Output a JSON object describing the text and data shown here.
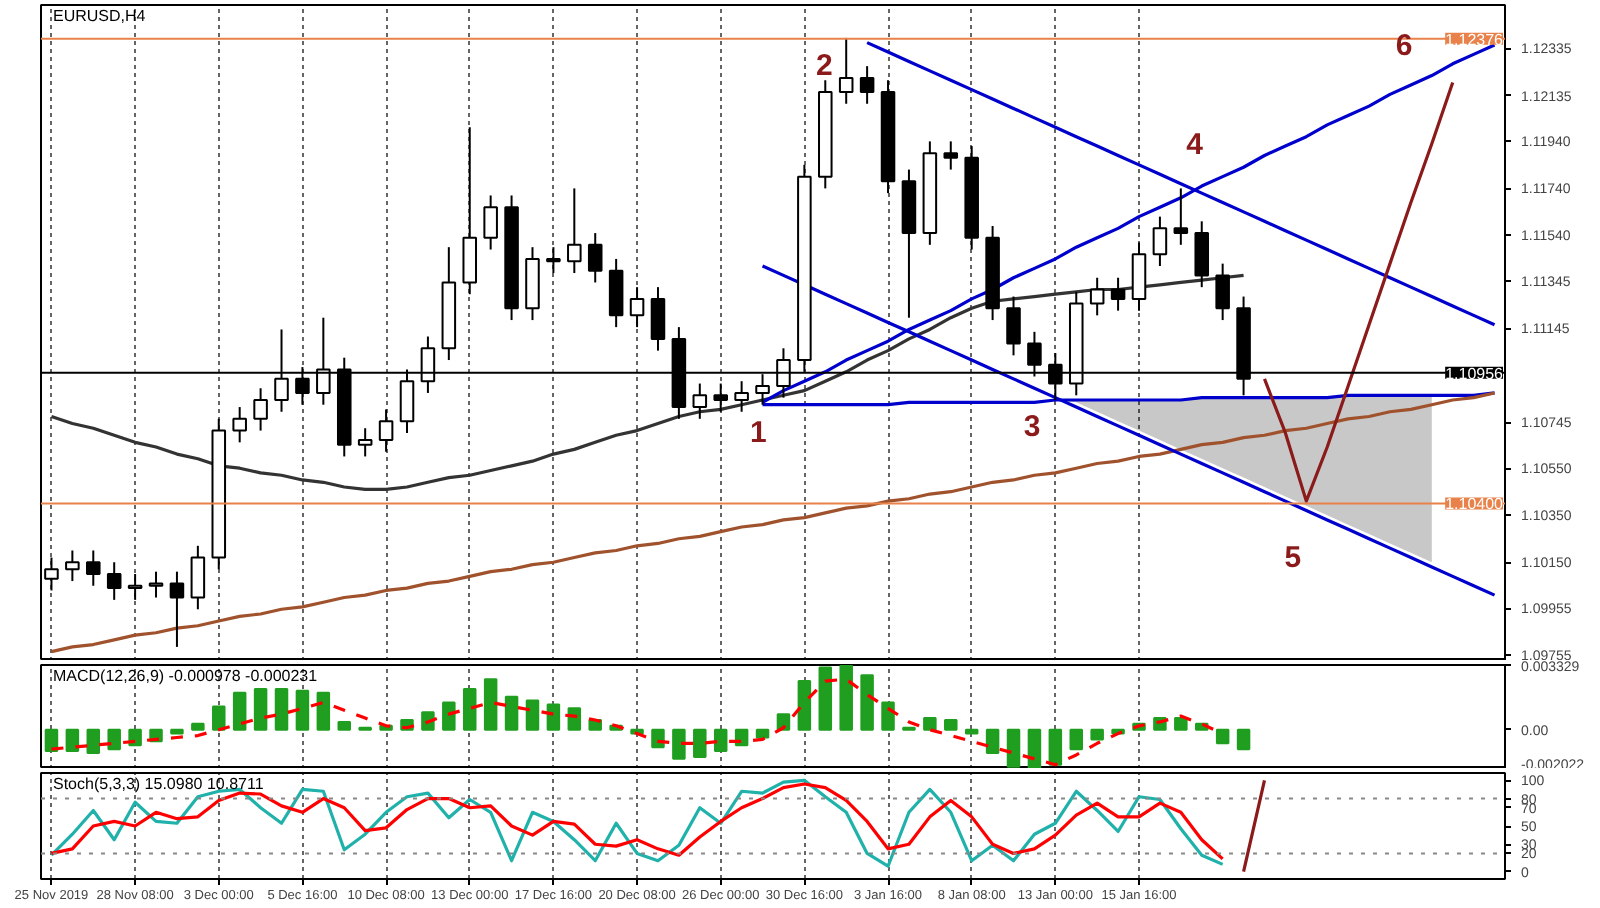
{
  "chart_data": [
    {
      "type": "candlestick",
      "title": "EURUSD,H4",
      "ylim": [
        1.0973,
        1.1252
      ],
      "tick_labels": "y",
      "grid": "x",
      "yticks": [
        {
          "value": 1.12335,
          "label": "1.12335"
        },
        {
          "value": 1.12135,
          "label": "1.12135"
        },
        {
          "value": 1.1194,
          "label": "1.11940"
        },
        {
          "value": 1.1174,
          "label": "1.11740"
        },
        {
          "value": 1.1154,
          "label": "1.11540"
        },
        {
          "value": 1.11345,
          "label": "1.11345"
        },
        {
          "value": 1.11145,
          "label": "1.11145"
        },
        {
          "value": 1.10745,
          "label": "1.10745"
        },
        {
          "value": 1.1055,
          "label": "1.10550"
        },
        {
          "value": 1.1035,
          "label": "1.10350"
        },
        {
          "value": 1.1015,
          "label": "1.10150"
        },
        {
          "value": 1.09955,
          "label": "1.09955"
        },
        {
          "value": 1.09755,
          "label": "1.09755"
        }
      ],
      "ohlc": [
        [
          1.1008,
          1.1017,
          1.1003,
          1.1012
        ],
        [
          1.1012,
          1.102,
          1.1007,
          1.1015
        ],
        [
          1.1015,
          1.102,
          1.1005,
          1.101
        ],
        [
          1.101,
          1.1015,
          1.0999,
          1.1004
        ],
        [
          1.1004,
          1.101,
          1.0999,
          1.1005
        ],
        [
          1.1005,
          1.1011,
          1.1,
          1.1006
        ],
        [
          1.1006,
          1.1011,
          1.0979,
          1.1
        ],
        [
          1.1,
          1.1022,
          1.0995,
          1.1017
        ],
        [
          1.1017,
          1.1076,
          1.1012,
          1.1071
        ],
        [
          1.1071,
          1.1081,
          1.1066,
          1.1076
        ],
        [
          1.1076,
          1.1089,
          1.1071,
          1.1084
        ],
        [
          1.1084,
          1.1114,
          1.1079,
          1.1093
        ],
        [
          1.1093,
          1.1098,
          1.1082,
          1.1087
        ],
        [
          1.1087,
          1.1119,
          1.1082,
          1.1097
        ],
        [
          1.1097,
          1.1102,
          1.106,
          1.1065
        ],
        [
          1.1065,
          1.1072,
          1.106,
          1.1067
        ],
        [
          1.1067,
          1.108,
          1.1062,
          1.1075
        ],
        [
          1.1075,
          1.1097,
          1.107,
          1.1092
        ],
        [
          1.1092,
          1.1111,
          1.1087,
          1.1106
        ],
        [
          1.1106,
          1.1149,
          1.1101,
          1.1134
        ],
        [
          1.1134,
          1.12,
          1.1129,
          1.1153
        ],
        [
          1.1153,
          1.1171,
          1.1148,
          1.1166
        ],
        [
          1.1166,
          1.1171,
          1.1118,
          1.1123
        ],
        [
          1.1123,
          1.1149,
          1.1118,
          1.1144
        ],
        [
          1.1144,
          1.1149,
          1.1138,
          1.1143
        ],
        [
          1.1143,
          1.1174,
          1.1138,
          1.115
        ],
        [
          1.115,
          1.1155,
          1.1134,
          1.1139
        ],
        [
          1.1139,
          1.1144,
          1.1115,
          1.112
        ],
        [
          1.112,
          1.1132,
          1.1115,
          1.1127
        ],
        [
          1.1127,
          1.1132,
          1.1105,
          1.111
        ],
        [
          1.111,
          1.1115,
          1.1076,
          1.1081
        ],
        [
          1.1081,
          1.1091,
          1.1076,
          1.1086
        ],
        [
          1.1086,
          1.1091,
          1.1079,
          1.1084
        ],
        [
          1.1084,
          1.1092,
          1.1079,
          1.1087
        ],
        [
          1.1087,
          1.1095,
          1.1082,
          1.109
        ],
        [
          1.109,
          1.1106,
          1.1085,
          1.1101
        ],
        [
          1.1101,
          1.1184,
          1.1096,
          1.1179
        ],
        [
          1.1179,
          1.122,
          1.1174,
          1.1215
        ],
        [
          1.1215,
          1.1238,
          1.121,
          1.1221
        ],
        [
          1.1221,
          1.1226,
          1.121,
          1.1215
        ],
        [
          1.1215,
          1.122,
          1.1172,
          1.1177
        ],
        [
          1.1177,
          1.1182,
          1.1119,
          1.1155
        ],
        [
          1.1155,
          1.1194,
          1.115,
          1.1189
        ],
        [
          1.1189,
          1.1194,
          1.1182,
          1.1187
        ],
        [
          1.1187,
          1.1192,
          1.1148,
          1.1153
        ],
        [
          1.1153,
          1.1158,
          1.1118,
          1.1123
        ],
        [
          1.1123,
          1.1128,
          1.1103,
          1.1108
        ],
        [
          1.1108,
          1.1113,
          1.1094,
          1.1099
        ],
        [
          1.1099,
          1.1104,
          1.1084,
          1.1091
        ],
        [
          1.1091,
          1.113,
          1.1086,
          1.1125
        ],
        [
          1.1125,
          1.1136,
          1.112,
          1.1131
        ],
        [
          1.1131,
          1.1136,
          1.1122,
          1.1127
        ],
        [
          1.1127,
          1.1151,
          1.1122,
          1.1146
        ],
        [
          1.1146,
          1.1162,
          1.1141,
          1.1157
        ],
        [
          1.1157,
          1.1174,
          1.115,
          1.1155
        ],
        [
          1.1155,
          1.116,
          1.1132,
          1.1137
        ],
        [
          1.1137,
          1.1142,
          1.1118,
          1.1123
        ],
        [
          1.1123,
          1.1128,
          1.1086,
          1.1093
        ],
        null,
        null,
        null,
        null,
        null,
        null,
        null,
        null,
        null,
        null,
        null,
        null
      ],
      "series": [
        {
          "type": "line",
          "color": "#0000cd",
          "values": [
            null,
            null,
            null,
            null,
            null,
            null,
            null,
            null,
            null,
            null,
            null,
            null,
            null,
            null,
            null,
            null,
            null,
            null,
            null,
            null,
            null,
            null,
            null,
            null,
            null,
            null,
            null,
            null,
            null,
            null,
            null,
            null,
            null,
            null,
            1.1082,
            1.1082,
            1.1082,
            1.1082,
            1.1082,
            1.1082,
            1.1082,
            1.1083,
            1.1083,
            1.1083,
            1.1083,
            1.1083,
            1.1083,
            1.1083,
            1.1084,
            1.1084,
            1.1084,
            1.1084,
            1.1084,
            1.1084,
            1.1084,
            1.1085,
            1.1085,
            1.1085,
            1.1085,
            1.1085,
            1.1085,
            1.1085,
            1.1086,
            1.1086,
            1.1086,
            1.1086,
            1.1086,
            1.1086,
            1.1086,
            1.1087
          ],
          "upper": [
            null,
            null,
            null,
            null,
            null,
            null,
            null,
            null,
            null,
            null,
            null,
            null,
            null,
            null,
            null,
            null,
            null,
            null,
            null,
            null,
            null,
            null,
            null,
            null,
            null,
            null,
            null,
            null,
            null,
            null,
            null,
            null,
            null,
            null,
            null,
            null,
            null,
            null,
            null,
            null,
            null,
            null,
            null,
            null,
            null,
            null,
            null,
            null,
            1.1084,
            1.1084,
            1.1084,
            1.1084,
            1.1084,
            1.1084,
            1.1084,
            1.1085,
            1.1085,
            1.1085,
            1.1085,
            1.1085,
            1.1085,
            1.1085,
            1.1086,
            1.1086,
            1.1086,
            1.1086,
            1.1086,
            null,
            null,
            null
          ],
          "lower": [
            null,
            null,
            null,
            null,
            null,
            null,
            null,
            null,
            null,
            null,
            null,
            null,
            null,
            null,
            null,
            null,
            null,
            null,
            null,
            null,
            null,
            null,
            null,
            null,
            null,
            null,
            null,
            null,
            null,
            null,
            null,
            null,
            null,
            null,
            null,
            null,
            null,
            null,
            null,
            null,
            null,
            null,
            null,
            null,
            null,
            null,
            null,
            null,
            1.1084,
            1.1083,
            1.1079,
            1.1075,
            1.1071,
            1.1067,
            1.1063,
            1.1059,
            1.1055,
            1.1051,
            1.1047,
            1.1043,
            1.1039,
            1.1035,
            1.1031,
            1.1027,
            1.1023,
            1.1019,
            1.1015,
            null,
            null,
            null
          ]
        },
        {
          "type": "line",
          "color": "#333333",
          "values": [
            1.1077,
            1.1074,
            1.1072,
            1.1069,
            1.1066,
            1.1064,
            1.1061,
            1.1059,
            1.1056,
            1.1055,
            1.1053,
            1.1052,
            1.105,
            1.1049,
            1.1047,
            1.1046,
            1.1046,
            1.1047,
            1.1049,
            1.1051,
            1.1052,
            1.1054,
            1.1056,
            1.1058,
            1.1061,
            1.1063,
            1.1066,
            1.1069,
            1.1071,
            1.1074,
            1.1077,
            1.1079,
            1.108,
            1.1082,
            1.1084,
            1.1086,
            1.1088,
            1.1092,
            1.1096,
            1.1101,
            1.1105,
            1.111,
            1.1114,
            1.1119,
            1.1123,
            1.1126,
            1.1127,
            1.1128,
            1.1129,
            1.113,
            1.1131,
            1.1131,
            1.1132,
            1.1133,
            1.1134,
            1.1135,
            1.1136,
            1.1137,
            null,
            null,
            null,
            null,
            null,
            null,
            null,
            null,
            null,
            null,
            null,
            null
          ]
        },
        {
          "type": "line",
          "color": "#a0522d",
          "values": [
            1.0977,
            1.0979,
            1.098,
            1.0982,
            1.0984,
            1.0985,
            1.0987,
            1.0988,
            1.099,
            1.0992,
            1.0993,
            1.0995,
            1.0996,
            1.0998,
            1.1,
            1.1001,
            1.1003,
            1.1004,
            1.1006,
            1.1007,
            1.1009,
            1.1011,
            1.1012,
            1.1014,
            1.1015,
            1.1017,
            1.1019,
            1.102,
            1.1022,
            1.1023,
            1.1025,
            1.1026,
            1.1028,
            1.103,
            1.1031,
            1.1033,
            1.1034,
            1.1036,
            1.1038,
            1.1039,
            1.1041,
            1.1042,
            1.1044,
            1.1045,
            1.1047,
            1.1049,
            1.105,
            1.1052,
            1.1053,
            1.1055,
            1.1057,
            1.1058,
            1.106,
            1.1061,
            1.1063,
            1.1065,
            1.1066,
            1.1068,
            1.1069,
            1.1071,
            1.1072,
            1.1074,
            1.1076,
            1.1077,
            1.1079,
            1.108,
            1.1082,
            1.1084,
            1.1085,
            1.1087
          ]
        },
        {
          "type": "line",
          "color": "#0000cd",
          "values": [
            null,
            null,
            null,
            null,
            null,
            null,
            null,
            null,
            null,
            null,
            null,
            null,
            null,
            null,
            null,
            null,
            null,
            null,
            null,
            null,
            null,
            null,
            null,
            null,
            null,
            null,
            null,
            null,
            null,
            null,
            null,
            null,
            null,
            null,
            1.1083,
            1.1088,
            1.1092,
            1.1096,
            1.1101,
            1.1105,
            1.1109,
            1.1114,
            1.1118,
            1.1122,
            1.1127,
            1.1131,
            1.1136,
            1.114,
            1.1144,
            1.1149,
            1.1153,
            1.1157,
            1.1162,
            1.1166,
            1.117,
            1.1175,
            1.1179,
            1.1183,
            1.1188,
            1.1192,
            1.1196,
            1.1201,
            1.1205,
            1.1209,
            1.1214,
            1.1218,
            1.1222,
            1.1227,
            1.1231,
            1.1235
          ]
        },
        {
          "type": "line",
          "color": "#0000cd",
          "values": [
            null,
            null,
            null,
            null,
            null,
            null,
            null,
            null,
            null,
            null,
            null,
            null,
            null,
            null,
            null,
            null,
            null,
            null,
            null,
            null,
            null,
            null,
            null,
            null,
            null,
            null,
            null,
            null,
            null,
            null,
            null,
            null,
            null,
            null,
            null,
            null,
            null,
            null,
            null,
            1.1236,
            1.1232,
            1.1228,
            1.1224,
            1.122,
            1.1216,
            1.1212,
            1.1208,
            1.1204,
            1.12,
            1.1196,
            1.1192,
            1.1188,
            1.1184,
            1.118,
            1.1176,
            1.1172,
            1.1168,
            1.1164,
            1.116,
            1.1156,
            1.1152,
            1.1148,
            1.1144,
            1.114,
            1.1136,
            1.1132,
            1.1128,
            1.1124,
            1.112,
            1.1116
          ]
        },
        {
          "type": "line",
          "color": "#0000cd",
          "values": [
            null,
            null,
            null,
            null,
            null,
            null,
            null,
            null,
            null,
            null,
            null,
            null,
            null,
            null,
            null,
            null,
            null,
            null,
            null,
            null,
            null,
            null,
            null,
            null,
            null,
            null,
            null,
            null,
            null,
            null,
            null,
            null,
            null,
            null,
            1.1141,
            1.1137,
            1.1133,
            1.1129,
            1.1125,
            1.1121,
            1.1117,
            1.1113,
            1.1109,
            1.1105,
            1.1101,
            1.1097,
            1.1093,
            1.1089,
            1.1085,
            1.1081,
            1.1077,
            1.1073,
            1.1069,
            1.1065,
            1.1061,
            1.1057,
            1.1053,
            1.1049,
            1.1045,
            1.1041,
            1.1037,
            1.1033,
            1.1029,
            1.1025,
            1.1021,
            1.1017,
            1.1013,
            1.1009,
            1.1005,
            1.1001
          ]
        },
        {
          "type": "line",
          "color": "#8b1a1a",
          "values": [
            null,
            null,
            null,
            null,
            null,
            null,
            null,
            null,
            null,
            null,
            null,
            null,
            null,
            null,
            null,
            null,
            null,
            null,
            null,
            null,
            null,
            null,
            null,
            null,
            null,
            null,
            null,
            null,
            null,
            null,
            null,
            null,
            null,
            null,
            null,
            null,
            null,
            null,
            null,
            null,
            null,
            null,
            null,
            null,
            null,
            null,
            null,
            null,
            null,
            null,
            null,
            null,
            null,
            null,
            null,
            null,
            null,
            null,
            1.1093,
            1.107,
            1.1041,
            1.1064,
            1.109,
            1.1116,
            1.1142,
            1.1168,
            1.1193,
            1.1219,
            null,
            null
          ]
        }
      ],
      "ref_lines": [
        {
          "axis": "y",
          "value": 1.12376,
          "label": "1.12376",
          "color": "#e8824a"
        },
        {
          "axis": "y",
          "value": 1.104,
          "label": "1.10400",
          "color": "#e8824a"
        },
        {
          "axis": "y",
          "value": 1.10956,
          "label": "1.10956",
          "color": "#000000"
        }
      ],
      "annotations": [
        "1",
        "2",
        "3",
        "4",
        "5",
        "6"
      ]
    },
    {
      "type": "bar",
      "title": "MACD(12,26,9) -0.000978 -0.000231",
      "ylim": [
        -0.002022,
        0.003329
      ],
      "tick_labels": "y",
      "grid": "x",
      "yticks": [
        0.003329,
        {
          "value": 0,
          "label": "0.00"
        },
        -0.002022
      ],
      "series": [
        {
          "type": "bar",
          "color": "#1f9e1f",
          "values": [
            -0.0011,
            -0.0011,
            -0.0012,
            -0.001,
            -0.0008,
            -0.0006,
            -0.0002,
            0.0003,
            0.0012,
            0.0019,
            0.0021,
            0.0021,
            0.002,
            0.0019,
            0.0004,
            0.0001,
            0.0002,
            0.0005,
            0.0009,
            0.0014,
            0.0021,
            0.0026,
            0.0017,
            0.0015,
            0.0013,
            0.0011,
            0.0005,
            0.0002,
            -0.0002,
            -0.0009,
            -0.0015,
            -0.0014,
            -0.0011,
            -0.0008,
            -0.0004,
            0.0008,
            0.0025,
            0.0032,
            0.0033,
            0.0028,
            0.0014,
            0.0001,
            0.0006,
            0.0005,
            -0.0002,
            -0.0012,
            -0.0019,
            -0.002,
            -0.0018,
            -0.001,
            -0.0005,
            -0.0002,
            0.0003,
            0.0006,
            0.0006,
            0.0003,
            -0.0007,
            -0.001,
            null,
            null,
            null,
            null,
            null,
            null,
            null,
            null,
            null,
            null,
            null,
            null
          ]
        },
        {
          "type": "line",
          "color": "#ff0000",
          "line_style": "dashed",
          "values": [
            -0.001,
            -0.0009,
            -0.0008,
            -0.0007,
            -0.0006,
            -0.0005,
            -0.0004,
            -0.0003,
            0,
            0.0003,
            0.0006,
            0.0008,
            0.0011,
            0.0014,
            0.001,
            0.0006,
            0.0002,
            0.0001,
            0.0004,
            0.0008,
            0.0011,
            0.0014,
            0.0012,
            0.001,
            0.0008,
            0.0007,
            0.0005,
            0.0002,
            -0.0002,
            -0.0006,
            -0.0007,
            -0.0007,
            -0.0006,
            -0.0006,
            -0.0005,
            0.0001,
            0.0014,
            0.0025,
            0.0026,
            0.0018,
            0.0011,
            0.0004,
            0,
            -0.0003,
            -0.0006,
            -0.0009,
            -0.0012,
            -0.0015,
            -0.0018,
            -0.0013,
            -0.0007,
            -0.0002,
            0.0002,
            0.0004,
            0.0007,
            0.0003,
            -0.0002,
            null,
            null,
            null,
            null,
            null,
            null,
            null,
            null,
            null,
            null,
            null,
            null,
            null
          ]
        }
      ]
    },
    {
      "type": "line",
      "title": "Stoch(5,3,3) 15.0980 10.8711",
      "ylim": [
        -8,
        108
      ],
      "grid": "x",
      "categories": [
        "25 Nov 2019",
        null,
        null,
        null,
        "28 Nov 08:00",
        null,
        null,
        null,
        "3 Dec 00:00",
        null,
        null,
        null,
        "5 Dec 16:00",
        null,
        null,
        null,
        "10 Dec 08:00",
        null,
        null,
        null,
        "13 Dec 00:00",
        null,
        null,
        null,
        "17 Dec 16:00",
        null,
        null,
        null,
        "20 Dec 08:00",
        null,
        null,
        null,
        "26 Dec 00:00",
        null,
        null,
        null,
        "30 Dec 16:00",
        null,
        null,
        null,
        "3 Jan 16:00",
        null,
        null,
        null,
        "8 Jan 08:00",
        null,
        null,
        null,
        "13 Jan 00:00",
        null,
        null,
        null,
        "15 Jan 16:00",
        null,
        null,
        null,
        null,
        null,
        null,
        null,
        null,
        null,
        null,
        null,
        null,
        null,
        null,
        null,
        null,
        null
      ],
      "yticks": [
        0,
        20,
        30,
        50,
        70,
        80,
        100
      ],
      "ref_lines": [
        {
          "axis": "y",
          "value": 80,
          "color": "#888888",
          "line_style": "dotted"
        },
        {
          "axis": "y",
          "value": 20,
          "color": "#888888",
          "line_style": "dotted"
        }
      ],
      "series": [
        {
          "type": "line",
          "color": "#20b2aa",
          "values": [
            18,
            41,
            67,
            35,
            76,
            55,
            53,
            82,
            88,
            90,
            70,
            53,
            90,
            88,
            24,
            41,
            65,
            82,
            86,
            59,
            79,
            65,
            12,
            65,
            55,
            35,
            12,
            53,
            20,
            12,
            29,
            70,
            53,
            88,
            86,
            98,
            100,
            82,
            65,
            20,
            6,
            65,
            90,
            65,
            12,
            29,
            12,
            41,
            53,
            88,
            67,
            44,
            82,
            79,
            47,
            18,
            8,
            null,
            null,
            null,
            null,
            null,
            null,
            null,
            null,
            null,
            null,
            null,
            null,
            null
          ]
        },
        {
          "type": "line",
          "color": "#ff0000",
          "values": [
            20,
            25,
            50,
            55,
            50,
            65,
            58,
            60,
            78,
            86,
            85,
            72,
            65,
            80,
            70,
            45,
            48,
            68,
            80,
            80,
            70,
            72,
            50,
            40,
            55,
            52,
            30,
            28,
            35,
            25,
            18,
            38,
            55,
            70,
            80,
            92,
            96,
            92,
            78,
            55,
            25,
            30,
            60,
            78,
            60,
            30,
            20,
            25,
            40,
            62,
            75,
            60,
            60,
            75,
            65,
            35,
            14,
            null,
            null,
            null,
            null,
            null,
            null,
            null,
            null,
            null,
            null,
            null,
            null,
            null
          ]
        },
        {
          "type": "line",
          "color": "#8b1a1a",
          "values": [
            null,
            null,
            null,
            null,
            null,
            null,
            null,
            null,
            null,
            null,
            null,
            null,
            null,
            null,
            null,
            null,
            null,
            null,
            null,
            null,
            null,
            null,
            null,
            null,
            null,
            null,
            null,
            null,
            null,
            null,
            null,
            null,
            null,
            null,
            null,
            null,
            null,
            null,
            null,
            null,
            null,
            null,
            null,
            null,
            null,
            null,
            null,
            null,
            null,
            null,
            null,
            null,
            null,
            null,
            null,
            null,
            null,
            0,
            100,
            null,
            null,
            null,
            null,
            null,
            null,
            null,
            null,
            null,
            null,
            null
          ]
        }
      ]
    }
  ]
}
